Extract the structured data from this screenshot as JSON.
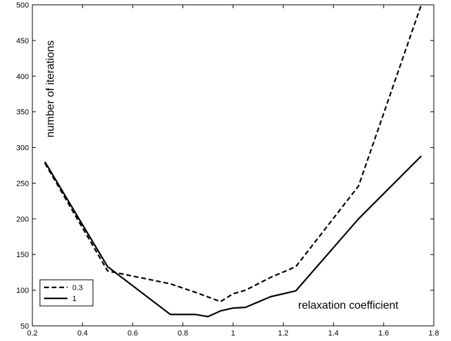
{
  "chart_data": {
    "type": "line",
    "title": "",
    "xlabel": "relaxation coefficient",
    "ylabel": "number of iterations",
    "xlim": [
      0.2,
      1.8
    ],
    "ylim": [
      50,
      500
    ],
    "xticks": [
      0.2,
      0.4,
      0.6,
      0.8,
      1,
      1.2,
      1.4,
      1.6,
      1.8
    ],
    "xtick_labels": [
      "0.2",
      "0.4",
      "0.6",
      "0.8",
      "1",
      "1.2",
      "1.4",
      "1.6",
      "1.8"
    ],
    "yticks": [
      50,
      100,
      150,
      200,
      250,
      300,
      350,
      400,
      450,
      500
    ],
    "ytick_labels": [
      "50",
      "100",
      "150",
      "200",
      "250",
      "300",
      "350",
      "400",
      "450",
      "500"
    ],
    "grid": false,
    "legend_position": "bottom-left",
    "series": [
      {
        "name": "0.3",
        "style": "dashed",
        "color": "#000000",
        "x": [
          0.25,
          0.5,
          0.75,
          0.85,
          0.95,
          1.0,
          1.05,
          1.15,
          1.25,
          1.5,
          1.75
        ],
        "y": [
          278,
          127,
          109,
          97,
          84,
          95,
          100,
          118,
          133,
          246,
          500
        ]
      },
      {
        "name": "1",
        "style": "solid",
        "color": "#000000",
        "x": [
          0.25,
          0.5,
          0.75,
          0.85,
          0.9,
          0.95,
          1.0,
          1.05,
          1.15,
          1.25,
          1.5,
          1.75
        ],
        "y": [
          280,
          133,
          66,
          66,
          63,
          71,
          75,
          76,
          91,
          99,
          200,
          288
        ]
      }
    ]
  }
}
